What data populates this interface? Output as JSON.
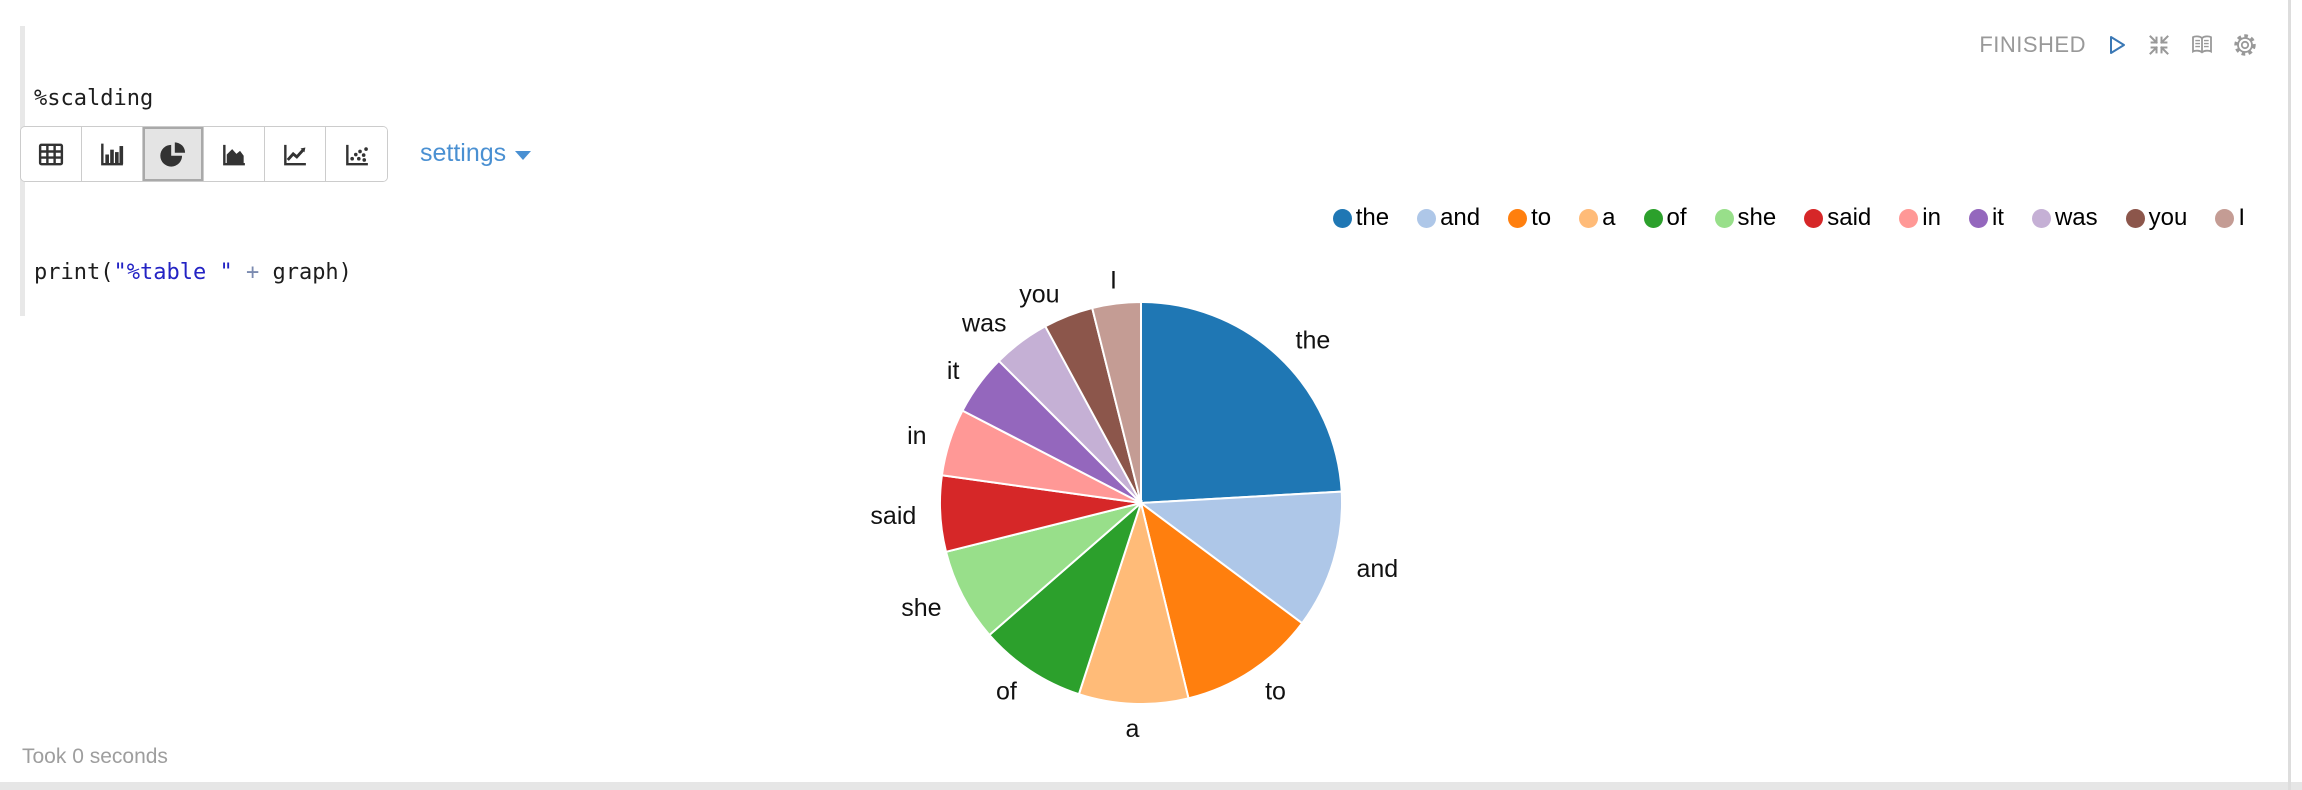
{
  "paragraph": {
    "status": "FINISHED",
    "settings_label": "settings",
    "took": "Took 0 seconds"
  },
  "code": {
    "line1": "%scalding",
    "line2": {
      "p1": "print(",
      "string": "\"%table \"",
      "operator": " + ",
      "p2": "graph)"
    }
  },
  "toolbar": {
    "chart_types": [
      "table",
      "bar",
      "pie",
      "area",
      "line",
      "scatter"
    ],
    "selected": "pie"
  },
  "colors": {
    "link_blue": "#4a90d2",
    "play_blue": "#3b78b5",
    "status_gray": "#999999",
    "icon_dark": "#333333"
  },
  "chart_data": {
    "type": "pie",
    "title": "",
    "categories": [
      "the",
      "and",
      "to",
      "a",
      "of",
      "she",
      "said",
      "in",
      "it",
      "was",
      "you",
      "I"
    ],
    "values": [
      24.1,
      11.1,
      11.0,
      8.8,
      8.6,
      7.5,
      6.1,
      5.4,
      4.9,
      4.6,
      4.0,
      3.9
    ],
    "values_unit": "percent_estimated_from_slice_angles",
    "colors": [
      "#1f77b4",
      "#aec7e8",
      "#ff7f0e",
      "#ffbb78",
      "#2ca02c",
      "#98df8a",
      "#d62728",
      "#ff9896",
      "#9467bd",
      "#c5b0d5",
      "#8c564b",
      "#c49c94"
    ],
    "legend_position": "top-right",
    "labels": "outside",
    "start_angle_deg": 0,
    "clockwise": true,
    "slice_stroke": "#ffffff"
  }
}
